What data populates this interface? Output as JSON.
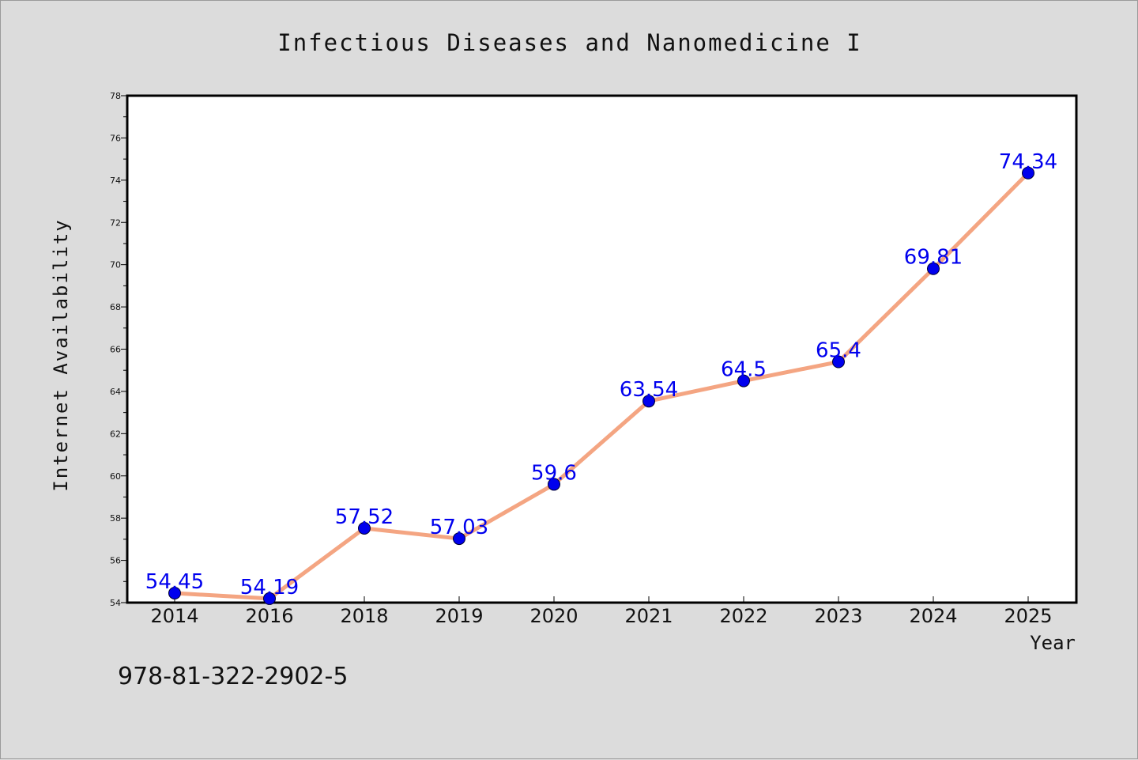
{
  "chart_data": {
    "type": "line",
    "title": "Infectious Diseases and Nanomedicine I",
    "xlabel": "Year",
    "ylabel": "Internet Availability",
    "categories": [
      "2014",
      "2016",
      "2018",
      "2019",
      "2020",
      "2021",
      "2022",
      "2023",
      "2024",
      "2025"
    ],
    "series": [
      {
        "values": [
          54.45,
          54.19,
          57.52,
          57.03,
          59.6,
          63.54,
          64.5,
          65.4,
          69.81,
          74.34
        ],
        "labels": [
          "54.45",
          "54.19",
          "57.52",
          "57.03",
          "59.6",
          "63.54",
          "64.5",
          "65.4",
          "69.81",
          "74.34"
        ]
      }
    ],
    "ylim": [
      54,
      78
    ],
    "yticks": [
      54,
      56,
      58,
      60,
      62,
      64,
      66,
      68,
      70,
      72,
      74,
      76,
      78
    ],
    "grid": false,
    "line_color": "#f4a582",
    "marker_color": "#0000ee",
    "label_color": "#0000ee"
  },
  "footer_text": "978-81-322-2902-5"
}
